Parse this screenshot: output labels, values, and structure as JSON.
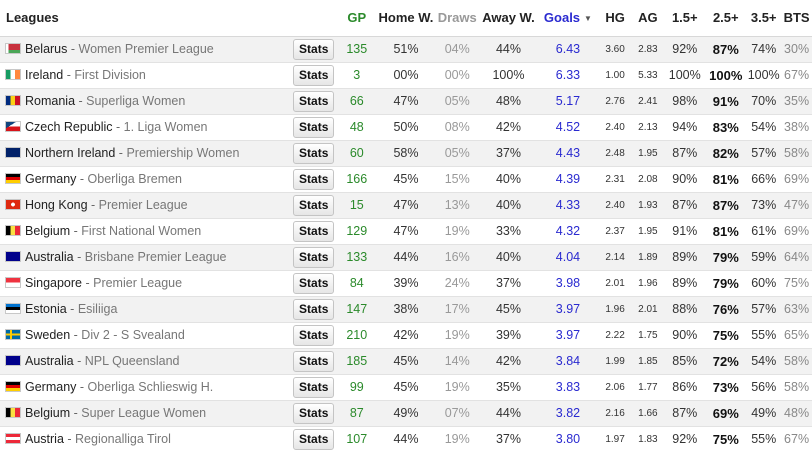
{
  "header": {
    "leagues": "Leagues",
    "gp": "GP",
    "home_w": "Home W.",
    "draws": "Draws",
    "away_w": "Away W.",
    "goals": "Goals",
    "sort_icon": "▼",
    "hg": "HG",
    "ag": "AG",
    "o15": "1.5+",
    "o25": "2.5+",
    "o35": "3.5+",
    "bts": "BTS"
  },
  "stats_label": "Stats",
  "separator": " - ",
  "rows": [
    {
      "country": "Belarus",
      "competition": "Women Premier League",
      "flag": "belarus-flag",
      "gp": "135",
      "home_w": "51%",
      "draws": "04%",
      "away_w": "44%",
      "goals": "6.43",
      "hg": "3.60",
      "ag": "2.83",
      "o15": "92%",
      "o25": "87%",
      "o35": "74%",
      "bts": "30%"
    },
    {
      "country": "Ireland",
      "competition": "First Division",
      "flag": "ireland-flag",
      "gp": "3",
      "home_w": "00%",
      "draws": "00%",
      "away_w": "100%",
      "goals": "6.33",
      "hg": "1.00",
      "ag": "5.33",
      "o15": "100%",
      "o25": "100%",
      "o35": "100%",
      "bts": "67%"
    },
    {
      "country": "Romania",
      "competition": "Superliga Women",
      "flag": "romania-flag",
      "gp": "66",
      "home_w": "47%",
      "draws": "05%",
      "away_w": "48%",
      "goals": "5.17",
      "hg": "2.76",
      "ag": "2.41",
      "o15": "98%",
      "o25": "91%",
      "o35": "70%",
      "bts": "35%"
    },
    {
      "country": "Czech Republic",
      "competition": "1. Liga Women",
      "flag": "czech-flag",
      "gp": "48",
      "home_w": "50%",
      "draws": "08%",
      "away_w": "42%",
      "goals": "4.52",
      "hg": "2.40",
      "ag": "2.13",
      "o15": "94%",
      "o25": "83%",
      "o35": "54%",
      "bts": "38%"
    },
    {
      "country": "Northern Ireland",
      "competition": "Premiership Women",
      "flag": "uk-flag",
      "gp": "60",
      "home_w": "58%",
      "draws": "05%",
      "away_w": "37%",
      "goals": "4.43",
      "hg": "2.48",
      "ag": "1.95",
      "o15": "87%",
      "o25": "82%",
      "o35": "57%",
      "bts": "58%"
    },
    {
      "country": "Germany",
      "competition": "Oberliga Bremen",
      "flag": "germany-flag",
      "gp": "166",
      "home_w": "45%",
      "draws": "15%",
      "away_w": "40%",
      "goals": "4.39",
      "hg": "2.31",
      "ag": "2.08",
      "o15": "90%",
      "o25": "81%",
      "o35": "66%",
      "bts": "69%"
    },
    {
      "country": "Hong Kong",
      "competition": "Premier League",
      "flag": "hongkong-flag",
      "gp": "15",
      "home_w": "47%",
      "draws": "13%",
      "away_w": "40%",
      "goals": "4.33",
      "hg": "2.40",
      "ag": "1.93",
      "o15": "87%",
      "o25": "87%",
      "o35": "73%",
      "bts": "47%"
    },
    {
      "country": "Belgium",
      "competition": "First National Women",
      "flag": "belgium-flag",
      "gp": "129",
      "home_w": "47%",
      "draws": "19%",
      "away_w": "33%",
      "goals": "4.32",
      "hg": "2.37",
      "ag": "1.95",
      "o15": "91%",
      "o25": "81%",
      "o35": "61%",
      "bts": "69%"
    },
    {
      "country": "Australia",
      "competition": "Brisbane Premier League",
      "flag": "australia-flag",
      "gp": "133",
      "home_w": "44%",
      "draws": "16%",
      "away_w": "40%",
      "goals": "4.04",
      "hg": "2.14",
      "ag": "1.89",
      "o15": "89%",
      "o25": "79%",
      "o35": "59%",
      "bts": "64%"
    },
    {
      "country": "Singapore",
      "competition": "Premier League",
      "flag": "singapore-flag",
      "gp": "84",
      "home_w": "39%",
      "draws": "24%",
      "away_w": "37%",
      "goals": "3.98",
      "hg": "2.01",
      "ag": "1.96",
      "o15": "89%",
      "o25": "79%",
      "o35": "60%",
      "bts": "75%"
    },
    {
      "country": "Estonia",
      "competition": "Esiliiga",
      "flag": "estonia-flag",
      "gp": "147",
      "home_w": "38%",
      "draws": "17%",
      "away_w": "45%",
      "goals": "3.97",
      "hg": "1.96",
      "ag": "2.01",
      "o15": "88%",
      "o25": "76%",
      "o35": "57%",
      "bts": "63%"
    },
    {
      "country": "Sweden",
      "competition": "Div 2 - S Svealand",
      "flag": "sweden-flag",
      "gp": "210",
      "home_w": "42%",
      "draws": "19%",
      "away_w": "39%",
      "goals": "3.97",
      "hg": "2.22",
      "ag": "1.75",
      "o15": "90%",
      "o25": "75%",
      "o35": "55%",
      "bts": "65%"
    },
    {
      "country": "Australia",
      "competition": "NPL Queensland",
      "flag": "australia-flag",
      "gp": "185",
      "home_w": "45%",
      "draws": "14%",
      "away_w": "42%",
      "goals": "3.84",
      "hg": "1.99",
      "ag": "1.85",
      "o15": "85%",
      "o25": "72%",
      "o35": "54%",
      "bts": "58%"
    },
    {
      "country": "Germany",
      "competition": "Oberliga Schlieswig H.",
      "flag": "germany-flag",
      "gp": "99",
      "home_w": "45%",
      "draws": "19%",
      "away_w": "35%",
      "goals": "3.83",
      "hg": "2.06",
      "ag": "1.77",
      "o15": "86%",
      "o25": "73%",
      "o35": "56%",
      "bts": "58%"
    },
    {
      "country": "Belgium",
      "competition": "Super League Women",
      "flag": "belgium-flag",
      "gp": "87",
      "home_w": "49%",
      "draws": "07%",
      "away_w": "44%",
      "goals": "3.82",
      "hg": "2.16",
      "ag": "1.66",
      "o15": "87%",
      "o25": "69%",
      "o35": "49%",
      "bts": "48%"
    },
    {
      "country": "Austria",
      "competition": "Regionalliga Tirol",
      "flag": "austria-flag",
      "gp": "107",
      "home_w": "44%",
      "draws": "19%",
      "away_w": "37%",
      "goals": "3.80",
      "hg": "1.97",
      "ag": "1.83",
      "o15": "92%",
      "o25": "75%",
      "o35": "55%",
      "bts": "67%"
    }
  ]
}
